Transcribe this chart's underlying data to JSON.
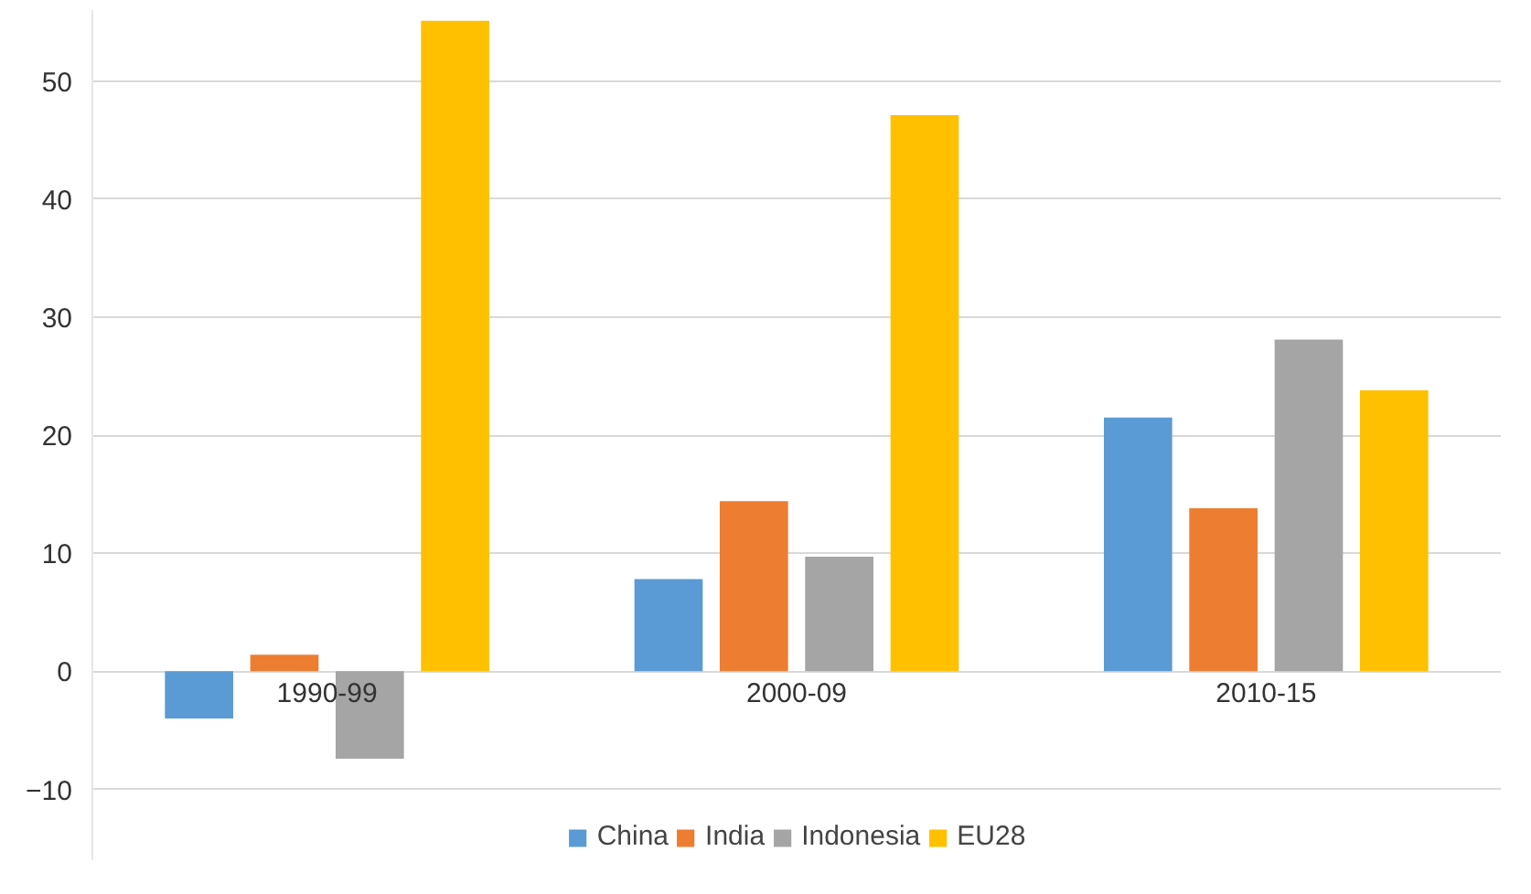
{
  "chart_data": {
    "type": "bar",
    "categories": [
      "1990-99",
      "2000-09",
      "2010-15"
    ],
    "series": [
      {
        "name": "China",
        "color": "#5b9bd5",
        "values": [
          -4.0,
          7.8,
          21.5
        ]
      },
      {
        "name": "India",
        "color": "#ed7d31",
        "values": [
          1.4,
          14.4,
          13.8
        ]
      },
      {
        "name": "Indonesia",
        "color": "#a5a5a5",
        "values": [
          -7.4,
          9.7,
          28.1
        ]
      },
      {
        "name": "EU28",
        "color": "#ffc000",
        "values": [
          55.1,
          47.1,
          23.8
        ]
      }
    ],
    "ylim": [
      -16,
      56
    ],
    "yticks": [
      -10,
      0,
      10,
      20,
      30,
      40,
      50
    ],
    "grid": "y",
    "legend": "bottom"
  }
}
